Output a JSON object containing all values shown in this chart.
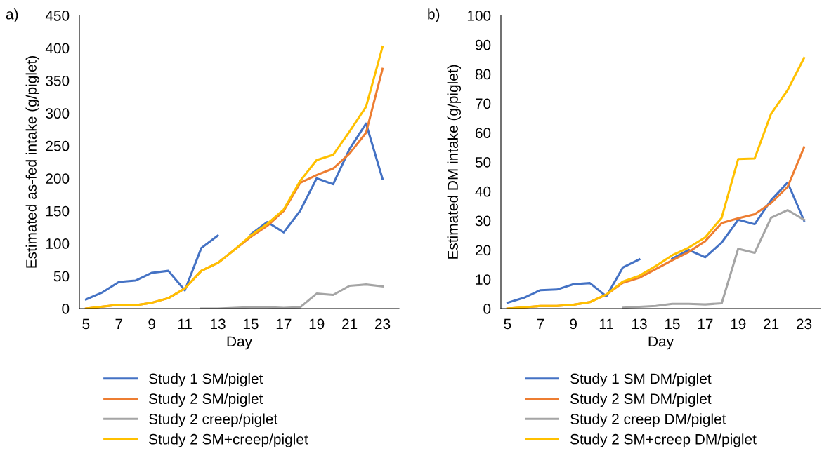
{
  "chart_data": [
    {
      "type": "line",
      "title": "a)",
      "xlabel": "Day",
      "ylabel": "Estimated as-fed intake (g/piglet)",
      "x": [
        5,
        6,
        7,
        8,
        9,
        10,
        11,
        12,
        13,
        14,
        15,
        16,
        17,
        18,
        19,
        20,
        21,
        22,
        23
      ],
      "xlim": [
        4.6,
        24.0
      ],
      "xticks": [
        5,
        7,
        9,
        11,
        13,
        15,
        17,
        19,
        21,
        23
      ],
      "ylim": [
        0,
        450
      ],
      "yticks": [
        0,
        50,
        100,
        150,
        200,
        250,
        300,
        350,
        400,
        450
      ],
      "grid": false,
      "legend": "bottom",
      "marker": "none",
      "line_style": "solid",
      "series": [
        {
          "name": "Study 1 SM/piglet",
          "color": "#4472c4",
          "values": [
            14,
            25,
            41,
            43,
            55,
            58,
            28,
            93,
            112,
            null,
            114,
            133,
            117,
            150,
            200,
            191,
            245,
            284,
            199
          ]
        },
        {
          "name": "Study 2 SM/piglet",
          "color": "#ed7d31",
          "values": [
            0,
            3,
            6,
            5,
            9,
            16,
            31,
            58,
            70,
            90,
            110,
            127,
            150,
            193,
            205,
            215,
            238,
            270,
            368
          ]
        },
        {
          "name": "Study 2 creep/piglet",
          "color": "#a5a5a5",
          "values": [
            null,
            null,
            null,
            null,
            null,
            null,
            null,
            0,
            0,
            1,
            2,
            2,
            1,
            2,
            23,
            21,
            35,
            37,
            34
          ]
        },
        {
          "name": "Study 2 SM+creep/piglet",
          "color": "#ffc000",
          "values": [
            0,
            3,
            6,
            5,
            9,
            16,
            31,
            58,
            70,
            90,
            112,
            130,
            152,
            196,
            228,
            236,
            272,
            310,
            402
          ]
        }
      ]
    },
    {
      "type": "line",
      "title": "b)",
      "xlabel": "Day",
      "ylabel": "Estimated DM intake (g/piglet)",
      "x": [
        5,
        6,
        7,
        8,
        9,
        10,
        11,
        12,
        13,
        14,
        15,
        16,
        17,
        18,
        19,
        20,
        21,
        22,
        23
      ],
      "xlim": [
        4.6,
        24.0
      ],
      "xticks": [
        5,
        7,
        9,
        11,
        13,
        15,
        17,
        19,
        21,
        23
      ],
      "ylim": [
        0,
        100
      ],
      "yticks": [
        0,
        10,
        20,
        30,
        40,
        50,
        60,
        70,
        80,
        90,
        100
      ],
      "grid": false,
      "legend": "bottom",
      "marker": "none",
      "line_style": "solid",
      "series": [
        {
          "name": "Study 1 SM DM/piglet",
          "color": "#4472c4",
          "values": [
            2,
            3.7,
            6.3,
            6.5,
            8.3,
            8.7,
            4.2,
            14,
            16.8,
            null,
            17,
            20,
            17.5,
            22.5,
            30.3,
            28.8,
            37,
            43,
            30
          ]
        },
        {
          "name": "Study 2 SM DM/piglet",
          "color": "#ed7d31",
          "values": [
            0,
            0.4,
            0.9,
            0.9,
            1.3,
            2.2,
            4.8,
            8.8,
            10.5,
            13.5,
            16.5,
            19.3,
            23,
            29.2,
            30.8,
            32.2,
            36,
            41.5,
            55
          ]
        },
        {
          "name": "Study 2 creep DM/piglet",
          "color": "#a5a5a5",
          "values": [
            null,
            null,
            null,
            null,
            null,
            null,
            null,
            0.3,
            0.6,
            0.9,
            1.6,
            1.6,
            1.4,
            1.8,
            20.4,
            19,
            31,
            33.6,
            30.3
          ]
        },
        {
          "name": "Study 2 SM+creep DM/piglet",
          "color": "#ffc000",
          "values": [
            0,
            0.4,
            0.9,
            0.9,
            1.3,
            2.2,
            4.8,
            9.2,
            11.2,
            14.5,
            18.2,
            20.8,
            24.3,
            31,
            51,
            51.2,
            66.5,
            74.5,
            85.5
          ]
        }
      ]
    }
  ]
}
